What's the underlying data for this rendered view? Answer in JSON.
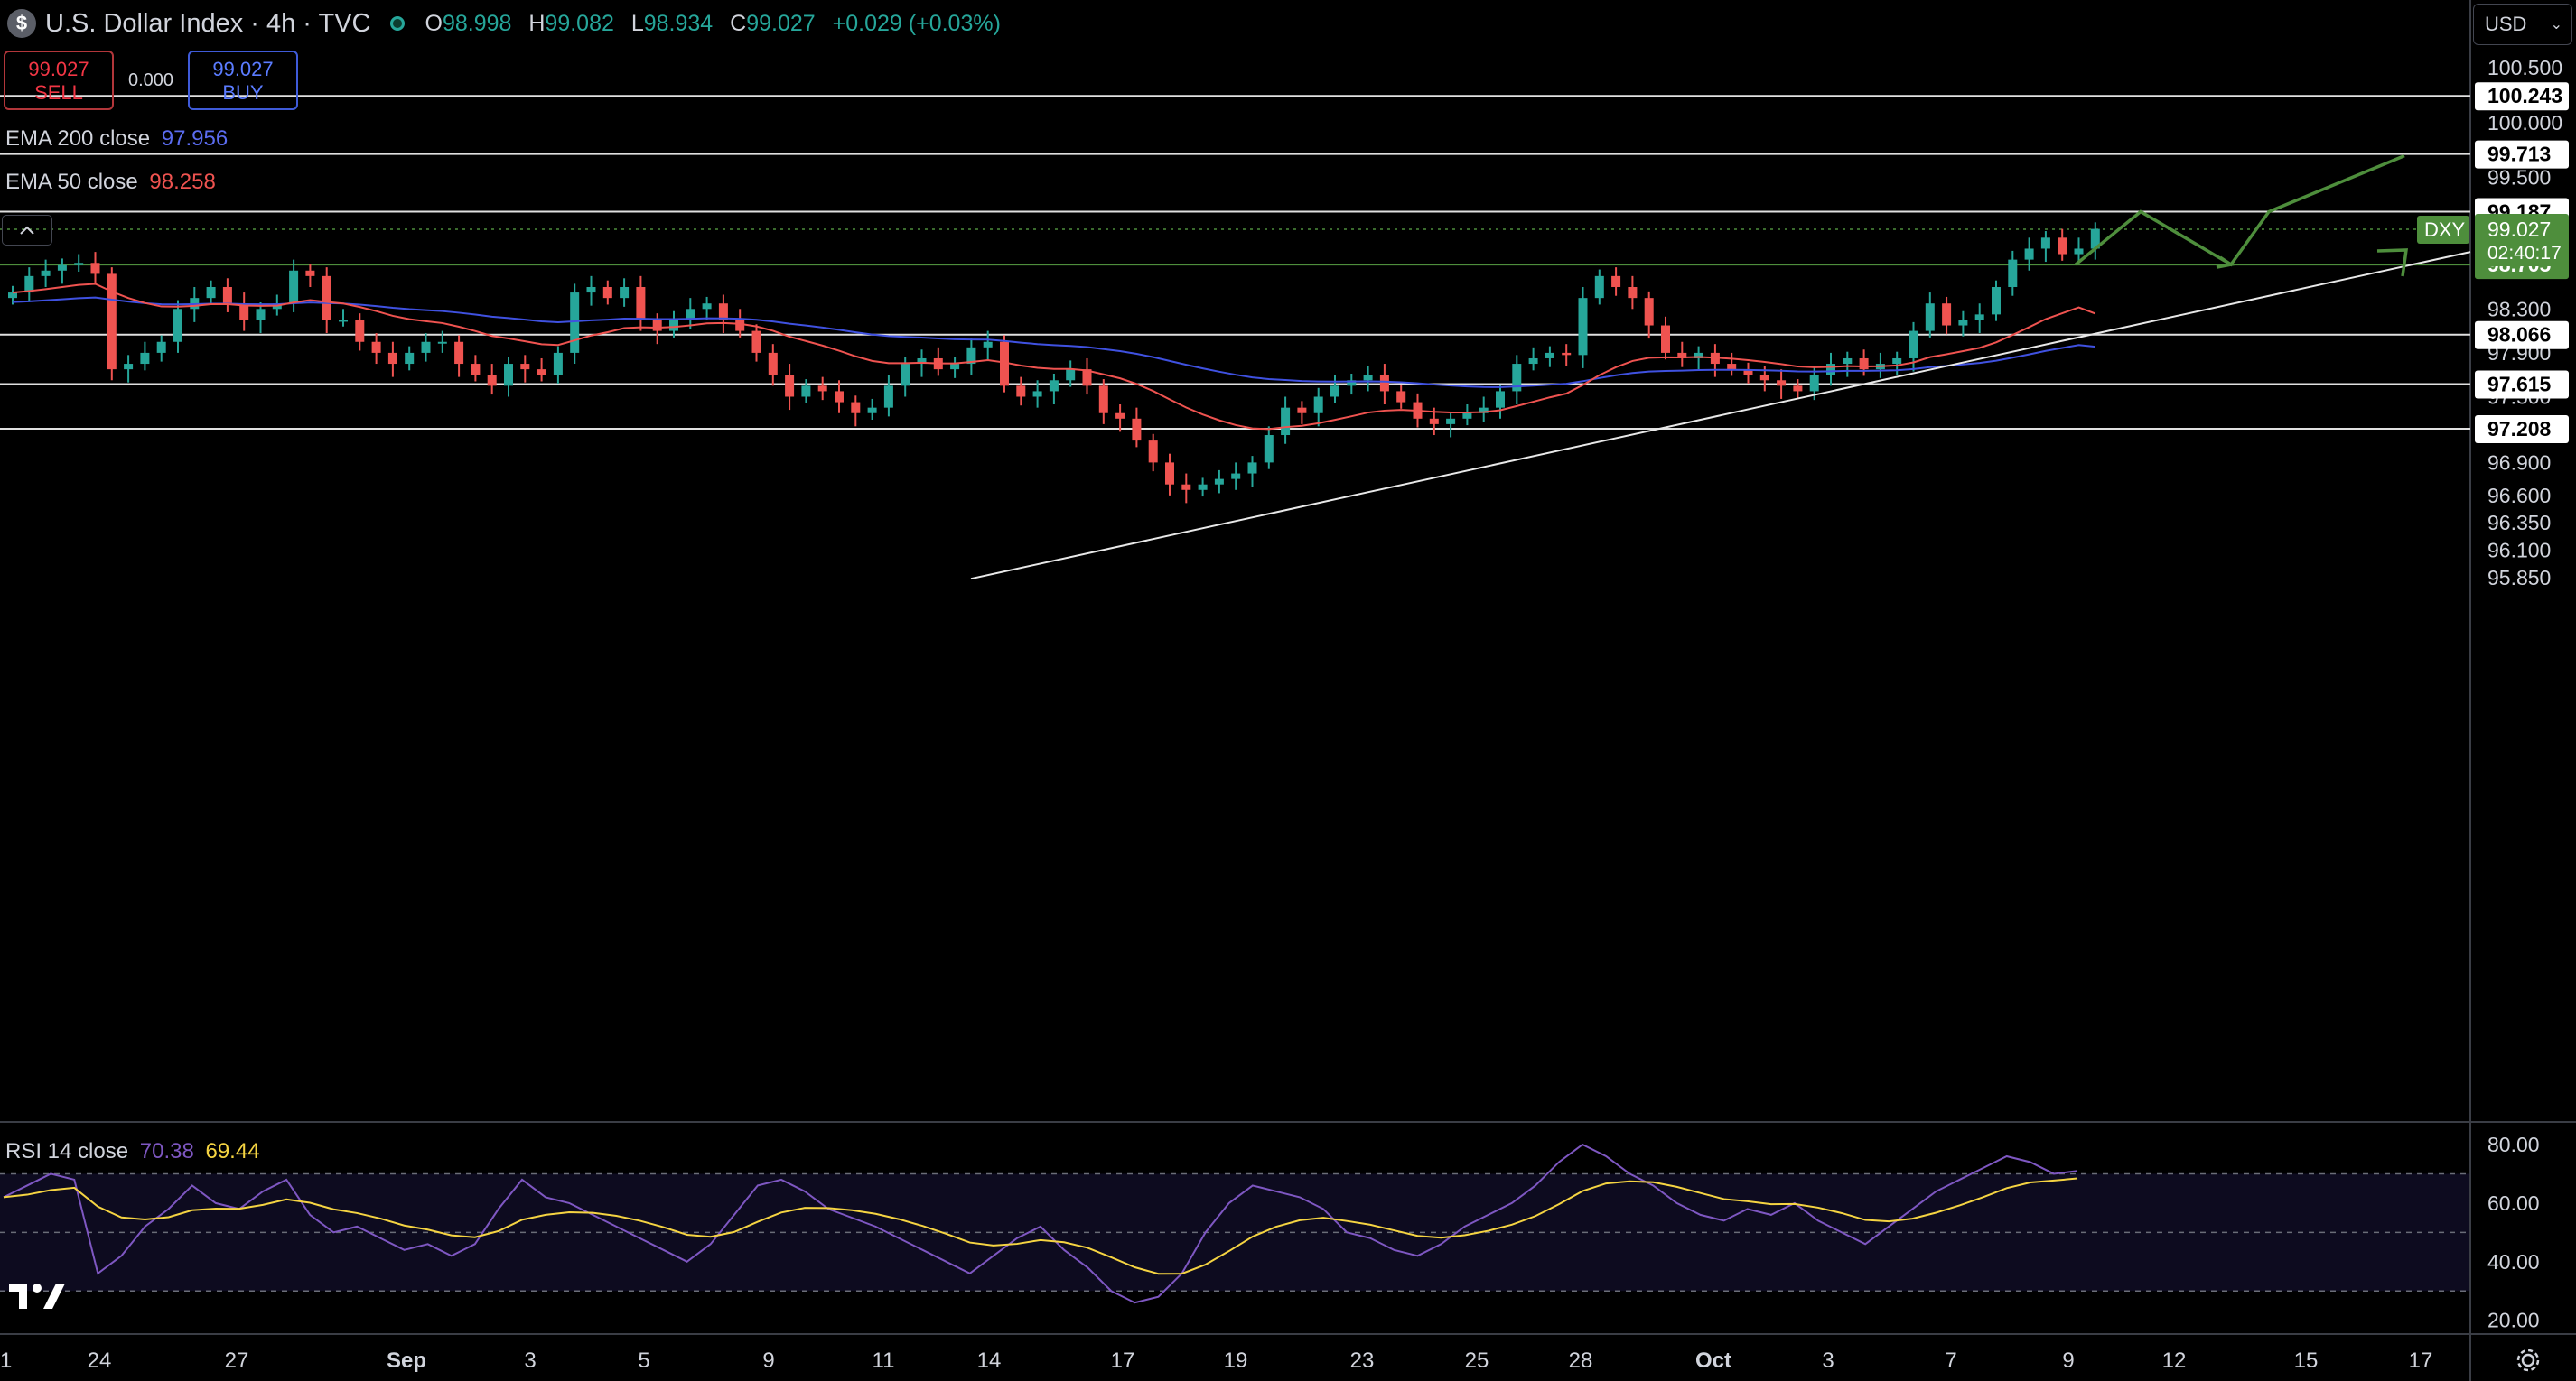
{
  "header": {
    "logo_symbol": "$",
    "title": "U.S. Dollar Index · 4h · TVC",
    "open_label": "O",
    "open": "98.998",
    "high_label": "H",
    "high": "99.082",
    "low_label": "L",
    "low": "98.934",
    "close_label": "C",
    "close": "99.027",
    "change": "+0.029 (+0.03%)"
  },
  "trade": {
    "sell_price": "99.027",
    "sell_label": "SELL",
    "spread": "0.000",
    "buy_price": "99.027",
    "buy_label": "BUY"
  },
  "indicators": {
    "ema200_label": "EMA 200 close",
    "ema200_value": "97.956",
    "ema50_label": "EMA 50 close",
    "ema50_value": "98.258",
    "rsi_label": "RSI 14 close",
    "rsi_value": "70.38",
    "rsi_ma_value": "69.44"
  },
  "currency": {
    "label": "USD"
  },
  "icons": {
    "logo": "dollar-coin-icon",
    "collapse": "chevron-up-icon",
    "currency": "chevron-down-icon",
    "settings": "gear-icon",
    "brand": "tradingview-logo-icon"
  },
  "colors": {
    "up": "#26a69a",
    "down": "#ef5350",
    "ema50": "#ef5350",
    "ema200": "#3f51e0",
    "rsi": "#7e57c2",
    "rsi_ma": "#f5d442",
    "target_arrow": "#4e8e3c",
    "price_tag": "#4e8e3c"
  },
  "chart_data": {
    "type": "candlestick",
    "symbol": "DXY",
    "timeframe": "4h",
    "y_axis_ticks": [
      100.5,
      100.0,
      99.5,
      98.3,
      97.9,
      97.5,
      96.9,
      96.6,
      96.35,
      96.1,
      95.85
    ],
    "y_axis_tick_labels": [
      "100.500",
      "100.000",
      "99.500",
      "98.300",
      "97.900",
      "97.500",
      "96.900",
      "96.600",
      "96.350",
      "96.100",
      "95.850"
    ],
    "x_axis_labels": [
      "1",
      "24",
      "27",
      "Sep",
      "3",
      "5",
      "9",
      "11",
      "14",
      "17",
      "19",
      "23",
      "25",
      "28",
      "Oct",
      "3",
      "7",
      "9",
      "12",
      "15",
      "17"
    ],
    "horizontal_levels": [
      {
        "value": 100.243,
        "label": "100.243",
        "style": "white"
      },
      {
        "value": 99.713,
        "label": "99.713",
        "style": "white"
      },
      {
        "value": 99.187,
        "label": "99.187",
        "style": "white"
      },
      {
        "value": 98.705,
        "label": "98.705",
        "style": "green"
      },
      {
        "value": 98.066,
        "label": "98.066",
        "style": "white"
      },
      {
        "value": 97.615,
        "label": "97.615",
        "style": "white"
      },
      {
        "value": 97.208,
        "label": "97.208",
        "style": "white"
      }
    ],
    "last_price": {
      "ticker": "DXY",
      "value": 99.027,
      "label": "99.027",
      "countdown": "02:40:17"
    },
    "trendline": {
      "from": {
        "date": "Sep 15",
        "price": 95.84
      },
      "to": {
        "date": "Oct 17",
        "price": 98.82
      }
    },
    "projection_path": [
      99.187,
      98.705,
      99.187,
      99.713
    ],
    "ema200_close": 97.956,
    "ema50_close": 98.258,
    "approx_series": {
      "close": [
        98.45,
        98.6,
        98.65,
        98.7,
        98.72,
        98.62,
        97.75,
        97.8,
        97.9,
        98.0,
        98.3,
        98.4,
        98.5,
        98.35,
        98.2,
        98.3,
        98.35,
        98.65,
        98.6,
        98.2,
        98.2,
        98.0,
        97.9,
        97.8,
        97.9,
        98.0,
        98.0,
        97.8,
        97.7,
        97.6,
        97.8,
        97.75,
        97.7,
        97.9,
        98.45,
        98.5,
        98.4,
        98.5,
        98.2,
        98.1,
        98.2,
        98.3,
        98.35,
        98.2,
        98.1,
        97.9,
        97.7,
        97.5,
        97.6,
        97.55,
        97.45,
        97.35,
        97.4,
        97.6,
        97.8,
        97.85,
        97.75,
        97.8,
        97.95,
        98.0,
        97.6,
        97.5,
        97.55,
        97.65,
        97.75,
        97.6,
        97.35,
        97.3,
        97.1,
        96.9,
        96.7,
        96.65,
        96.7,
        96.75,
        96.8,
        96.9,
        97.15,
        97.4,
        97.35,
        97.5,
        97.6,
        97.65,
        97.7,
        97.55,
        97.45,
        97.3,
        97.25,
        97.3,
        97.35,
        97.4,
        97.55,
        97.8,
        97.85,
        97.9,
        97.88,
        98.4,
        98.6,
        98.5,
        98.4,
        98.15,
        97.9,
        97.85,
        97.9,
        97.8,
        97.75,
        97.7,
        97.65,
        97.6,
        97.55,
        97.7,
        97.8,
        97.85,
        97.75,
        97.8,
        97.85,
        98.1,
        98.35,
        98.15,
        98.2,
        98.25,
        98.5,
        98.75,
        98.85,
        98.95,
        98.8,
        98.85,
        99.03
      ],
      "rsi": [
        62,
        66,
        70,
        68,
        36,
        42,
        52,
        58,
        66,
        60,
        58,
        64,
        68,
        56,
        50,
        52,
        48,
        44,
        46,
        42,
        46,
        58,
        68,
        62,
        60,
        56,
        52,
        48,
        44,
        40,
        46,
        56,
        66,
        68,
        64,
        58,
        55,
        52,
        48,
        44,
        40,
        36,
        42,
        48,
        52,
        44,
        38,
        30,
        26,
        28,
        36,
        50,
        60,
        66,
        64,
        62,
        58,
        50,
        48,
        44,
        42,
        46,
        52,
        56,
        60,
        66,
        74,
        80,
        76,
        70,
        66,
        60,
        56,
        54,
        58,
        56,
        60,
        54,
        50,
        46,
        52,
        58,
        64,
        68,
        72,
        76,
        74,
        70,
        71
      ]
    }
  }
}
